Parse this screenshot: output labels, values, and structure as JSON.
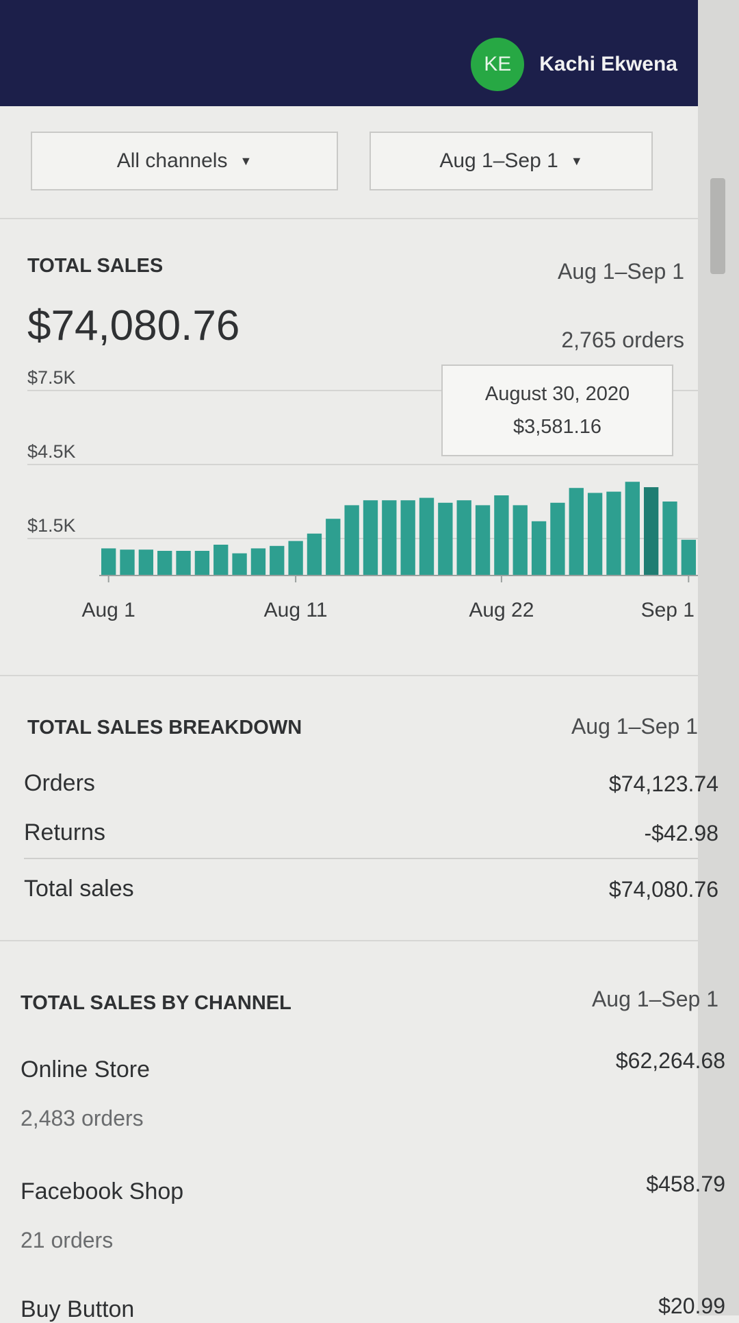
{
  "header": {
    "avatar_initials": "KE",
    "user_name": "Kachi Ekwena",
    "avatar_color": "#27a844",
    "bar_color": "#1c1f4a"
  },
  "filters": {
    "channel": "All channels",
    "date": "Aug 1–Sep 1"
  },
  "total_sales": {
    "title": "TOTAL SALES",
    "range": "Aug 1–Sep 1",
    "amount": "$74,080.76",
    "orders": "2,765 orders",
    "tooltip": {
      "date": "August 30, 2020",
      "value": "$3,581.16"
    }
  },
  "chart_data": {
    "type": "bar",
    "title": "",
    "xlabel": "",
    "ylabel": "",
    "y_tick_labels": [
      "$7.5K",
      "$4.5K",
      "$1.5K"
    ],
    "y_ticks": [
      7500,
      4500,
      1500
    ],
    "x_tick_labels": [
      "Aug 1",
      "Aug 11",
      "Aug 22",
      "Sep 1"
    ],
    "x_tick_index": [
      0,
      10,
      21,
      31
    ],
    "ylim": [
      0,
      7500
    ],
    "categories": [
      "Aug 1",
      "Aug 2",
      "Aug 3",
      "Aug 4",
      "Aug 5",
      "Aug 6",
      "Aug 7",
      "Aug 8",
      "Aug 9",
      "Aug 10",
      "Aug 11",
      "Aug 12",
      "Aug 13",
      "Aug 14",
      "Aug 15",
      "Aug 16",
      "Aug 17",
      "Aug 18",
      "Aug 19",
      "Aug 20",
      "Aug 21",
      "Aug 22",
      "Aug 23",
      "Aug 24",
      "Aug 25",
      "Aug 26",
      "Aug 27",
      "Aug 28",
      "Aug 29",
      "Aug 30",
      "Aug 31",
      "Sep 1"
    ],
    "values": [
      1100,
      1050,
      1050,
      1000,
      1000,
      1000,
      1250,
      900,
      1100,
      1200,
      1400,
      1700,
      2300,
      2850,
      3050,
      3050,
      3050,
      3150,
      2950,
      3050,
      2850,
      3250,
      2850,
      2200,
      2950,
      3550,
      3350,
      3400,
      3800,
      3581.16,
      3000,
      1450
    ],
    "highlight_index": 29,
    "bar_color": "#2e9f90",
    "highlight_color": "#1f7d72",
    "grid": true
  },
  "breakdown": {
    "title": "TOTAL SALES BREAKDOWN",
    "range": "Aug 1–Sep 1",
    "rows": [
      {
        "label": "Orders",
        "value": "$74,123.74"
      },
      {
        "label": "Returns",
        "value": "-$42.98"
      },
      {
        "label": "Total sales",
        "value": "$74,080.76"
      }
    ]
  },
  "by_channel": {
    "title": "TOTAL SALES BY CHANNEL",
    "range": "Aug 1–Sep 1",
    "channels": [
      {
        "name": "Online Store",
        "orders": "2,483 orders",
        "value": "$62,264.68"
      },
      {
        "name": "Facebook Shop",
        "orders": "21 orders",
        "value": "$458.79"
      },
      {
        "name": "Buy Button",
        "value": "$20.99"
      }
    ]
  }
}
